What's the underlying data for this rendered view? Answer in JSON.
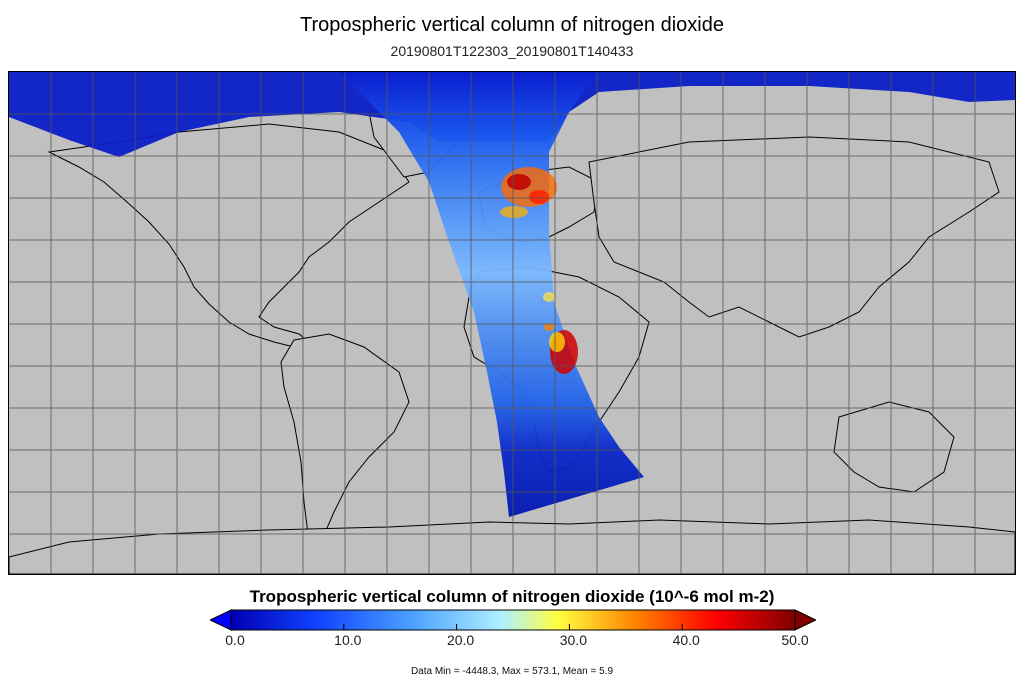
{
  "map": {
    "title": "Tropospheric vertical column of nitrogen dioxide",
    "subtitle": "20190801T122303_20190801T140433",
    "projection": "equirectangular",
    "background_color": "#c0c0c0",
    "grid": true,
    "coastlines": true
  },
  "colorbar": {
    "title": "Tropospheric vertical column of nitrogen dioxide (10^-6 mol m-2)",
    "ticks": [
      "0.0",
      "10.0",
      "20.0",
      "30.0",
      "40.0",
      "50.0"
    ],
    "range": [
      0,
      50
    ],
    "extend": "both",
    "colors": [
      "#0000b0",
      "#1040ff",
      "#4aa0ff",
      "#b0f0ff",
      "#ffff40",
      "#ff8000",
      "#ff0000",
      "#800000"
    ]
  },
  "stats": {
    "text": "Data Min = -4448.3, Max = 573.1, Mean = 5.9"
  }
}
